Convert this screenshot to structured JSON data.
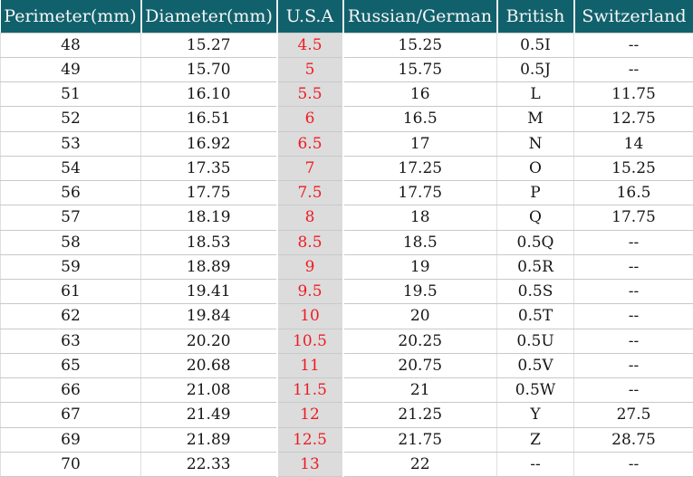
{
  "chart_data": {
    "type": "table",
    "columns": [
      "Perimeter(mm)",
      "Diameter(mm)",
      "U.S.A",
      "Russian/German",
      "British",
      "Switzerland"
    ],
    "column_keys": [
      "perimeter",
      "diameter",
      "usa",
      "russian-german",
      "british",
      "switzerland"
    ],
    "rows": [
      [
        "48",
        "15.27",
        "4.5",
        "15.25",
        "0.5I",
        "--"
      ],
      [
        "49",
        "15.70",
        "5",
        "15.75",
        "0.5J",
        "--"
      ],
      [
        "51",
        "16.10",
        "5.5",
        "16",
        "L",
        "11.75"
      ],
      [
        "52",
        "16.51",
        "6",
        "16.5",
        "M",
        "12.75"
      ],
      [
        "53",
        "16.92",
        "6.5",
        "17",
        "N",
        "14"
      ],
      [
        "54",
        "17.35",
        "7",
        "17.25",
        "O",
        "15.25"
      ],
      [
        "56",
        "17.75",
        "7.5",
        "17.75",
        "P",
        "16.5"
      ],
      [
        "57",
        "18.19",
        "8",
        "18",
        "Q",
        "17.75"
      ],
      [
        "58",
        "18.53",
        "8.5",
        "18.5",
        "0.5Q",
        "--"
      ],
      [
        "59",
        "18.89",
        "9",
        "19",
        "0.5R",
        "--"
      ],
      [
        "61",
        "19.41",
        "9.5",
        "19.5",
        "0.5S",
        "--"
      ],
      [
        "62",
        "19.84",
        "10",
        "20",
        "0.5T",
        "--"
      ],
      [
        "63",
        "20.20",
        "10.5",
        "20.25",
        "0.5U",
        "--"
      ],
      [
        "65",
        "20.68",
        "11",
        "20.75",
        "0.5V",
        "--"
      ],
      [
        "66",
        "21.08",
        "11.5",
        "21",
        "0.5W",
        "--"
      ],
      [
        "67",
        "21.49",
        "12",
        "21.25",
        "Y",
        "27.5"
      ],
      [
        "69",
        "21.89",
        "12.5",
        "21.75",
        "Z",
        "28.75"
      ],
      [
        "70",
        "22.33",
        "13",
        "22",
        "--",
        "--"
      ]
    ]
  },
  "colors": {
    "header_bg": "#11616c",
    "header_text": "#f7f7f7",
    "header_separator": "#e8eef0",
    "body_bg": "#ffffff",
    "body_text": "#161616",
    "usa_bg": "#dcdcdc",
    "usa_text": "#ed1c24",
    "row_border": "#c9c9c9",
    "col_border": "#dfdfdf"
  }
}
